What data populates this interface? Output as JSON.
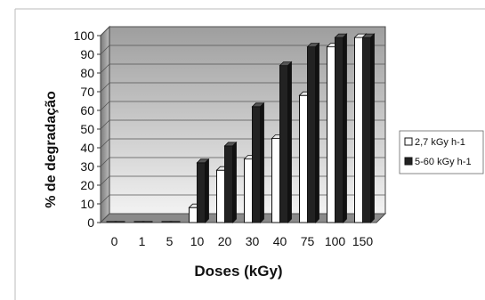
{
  "chart_data": {
    "type": "bar",
    "title": "",
    "xlabel": "Doses (kGy)",
    "ylabel": "% de degradação",
    "categories": [
      "0",
      "1",
      "5",
      "10",
      "20",
      "30",
      "40",
      "75",
      "100",
      "150"
    ],
    "ylim": [
      0,
      100
    ],
    "yticks": [
      0,
      10,
      20,
      30,
      40,
      50,
      60,
      70,
      80,
      90,
      100
    ],
    "grid": true,
    "legend_position": "right",
    "series": [
      {
        "name": "2,7 kGy h-1",
        "color": "#ffffff",
        "values": [
          0,
          0,
          0,
          8,
          28,
          34,
          45,
          68,
          94,
          99
        ]
      },
      {
        "name": "5-60 kGy h-1",
        "color": "#222222",
        "values": [
          0,
          0,
          0,
          32,
          41,
          62,
          84,
          94,
          99,
          99
        ]
      }
    ]
  }
}
